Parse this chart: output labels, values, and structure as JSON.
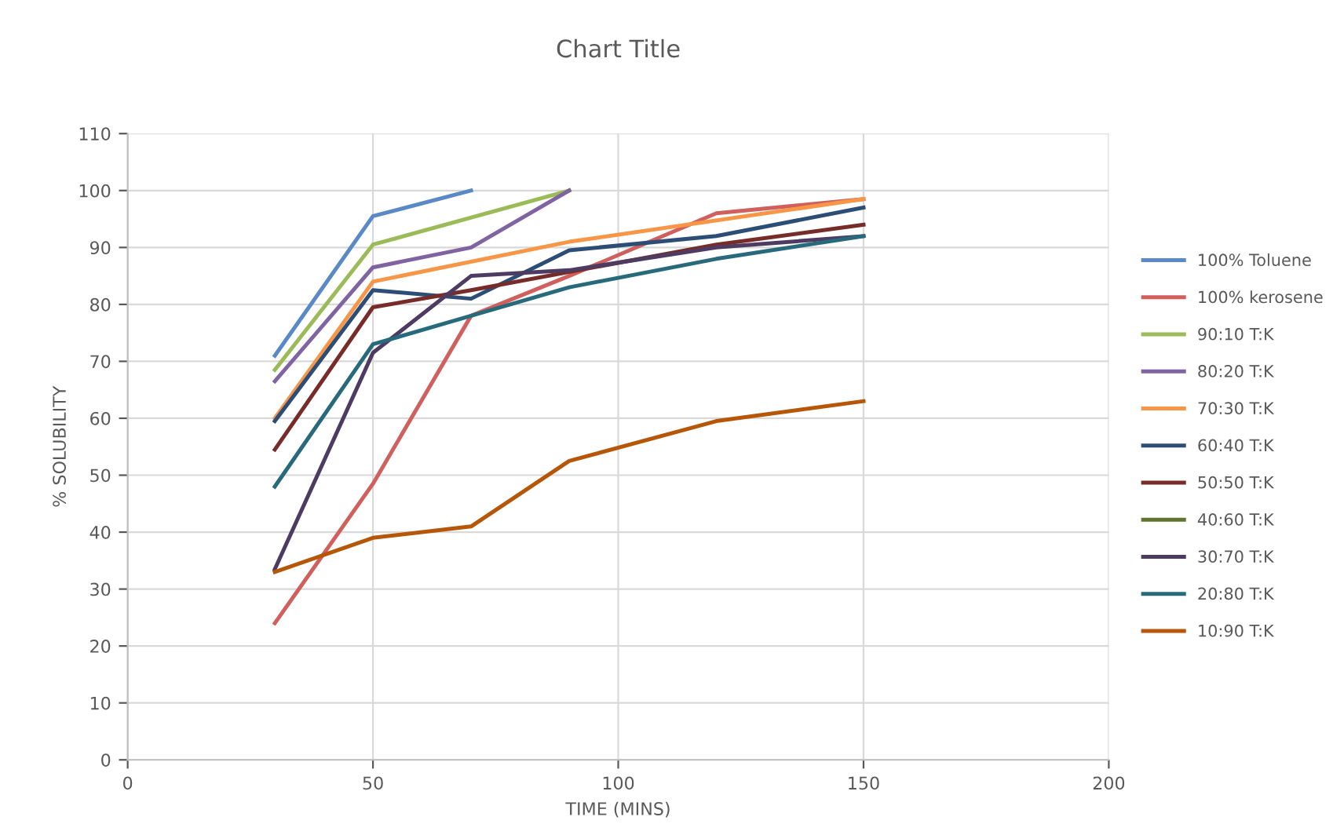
{
  "chart_data": {
    "type": "line",
    "title": "Chart Title",
    "xlabel": "TIME (MINS)",
    "ylabel": "% SOLUBILITY",
    "xlim": [
      0,
      200
    ],
    "xticks": [
      0,
      50,
      100,
      150,
      200
    ],
    "ylim": [
      0,
      110
    ],
    "yticks": [
      0,
      10,
      20,
      30,
      40,
      50,
      60,
      70,
      80,
      90,
      100,
      110
    ],
    "grid": true,
    "legend": "right",
    "marker": "none",
    "line_style": "solid",
    "series": [
      {
        "name": "100% Toluene",
        "color": "#5a8ac6",
        "x": [
          30,
          50,
          70
        ],
        "values": [
          71,
          95.5,
          100
        ]
      },
      {
        "name": "100% kerosene",
        "color": "#d0605e",
        "x": [
          30,
          50,
          70,
          90,
          120,
          150
        ],
        "values": [
          24,
          48.5,
          78,
          85,
          96,
          98.5
        ]
      },
      {
        "name": "90:10 T:K",
        "color": "#9bbb59",
        "x": [
          30,
          50,
          90
        ],
        "values": [
          68.5,
          90.5,
          100
        ]
      },
      {
        "name": "80:20 T:K",
        "color": "#8064a2",
        "x": [
          30,
          50,
          70,
          90
        ],
        "values": [
          66.5,
          86.5,
          90,
          100
        ]
      },
      {
        "name": "70:30 T:K",
        "color": "#f79646",
        "x": [
          30,
          50,
          90,
          150
        ],
        "values": [
          60,
          84,
          91,
          98.5
        ]
      },
      {
        "name": "60:40 T:K",
        "color": "#2c4d75",
        "x": [
          30,
          50,
          70,
          90,
          120,
          150
        ],
        "values": [
          59.5,
          82.5,
          81,
          89.5,
          92,
          97
        ]
      },
      {
        "name": "50:50 T:K",
        "color": "#772c2a",
        "x": [
          30,
          50,
          70,
          120,
          150
        ],
        "values": [
          54.5,
          79.5,
          82.5,
          90.5,
          94
        ]
      },
      {
        "name": "40:60 T:K",
        "color": "#5f7530"
      },
      {
        "name": "30:70 T:K",
        "color": "#4d3b62",
        "x": [
          30,
          50,
          70,
          90,
          120,
          150
        ],
        "values": [
          33.5,
          71.5,
          85,
          86,
          90,
          92
        ]
      },
      {
        "name": "20:80 T:K",
        "color": "#276a7c",
        "x": [
          30,
          50,
          70,
          90,
          120,
          150
        ],
        "values": [
          48,
          73,
          78,
          83,
          88,
          92
        ]
      },
      {
        "name": "10:90 T:K",
        "color": "#b65708",
        "x": [
          30,
          50,
          70,
          90,
          120,
          150
        ],
        "values": [
          33,
          39,
          41,
          52.5,
          59.5,
          63
        ]
      }
    ]
  }
}
